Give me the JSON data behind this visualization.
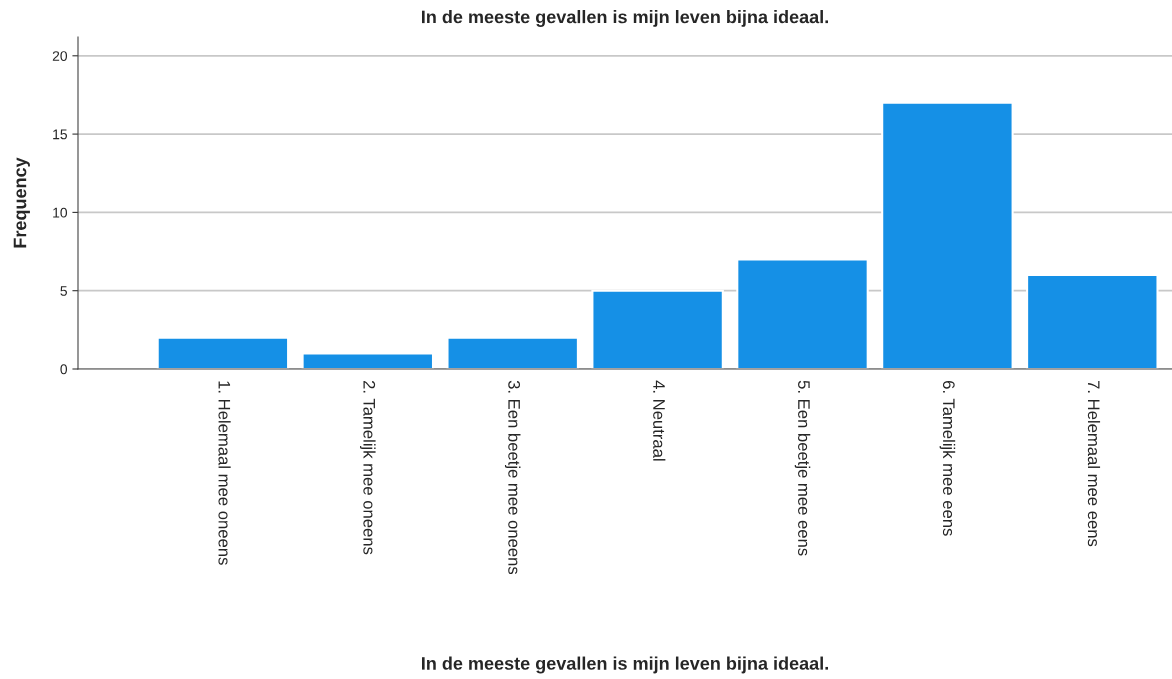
{
  "chart_data": {
    "type": "bar",
    "title": "In de meeste gevallen is mijn leven bijna ideaal.",
    "xlabel": "In de meeste gevallen is mijn leven bijna ideaal.",
    "ylabel": "Frequency",
    "categories": [
      "1. Helemaal mee oneens",
      "2. Tamelijk mee oneens",
      "3. Een beetje mee oneens",
      "4. Neutraal",
      "5. Een beetje mee eens",
      "6. Tamelijk mee eens",
      "7. Helemaal mee eens"
    ],
    "values": [
      2,
      1,
      2,
      5,
      7,
      17,
      6
    ],
    "color": "#1590e6",
    "ylim": [
      0,
      21.2
    ],
    "yticks": [
      0,
      5,
      10,
      15,
      20
    ],
    "grid": "y"
  }
}
